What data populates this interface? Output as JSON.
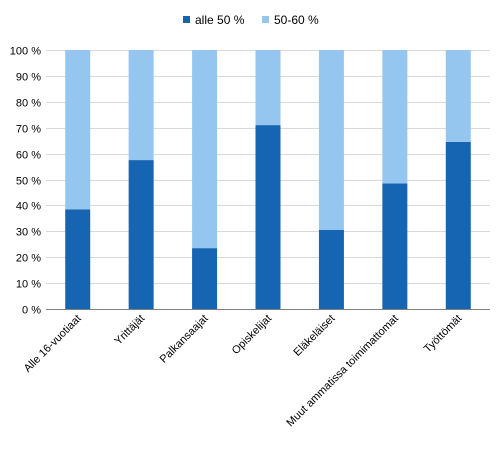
{
  "chart_data": {
    "type": "bar",
    "stacked": true,
    "percent_stacked": true,
    "categories": [
      "Alle 16-vuotiaat",
      "Yrittäjät",
      "Palkansaajat",
      "Opiskelijat",
      "Eläkeläiset",
      "Muut ammatissa toimimattomat",
      "Työttömät"
    ],
    "series": [
      {
        "name": "alle 50  %",
        "color": "#1565b3",
        "values": [
          38.5,
          57.5,
          23.5,
          71,
          30.5,
          48.5,
          64.5
        ]
      },
      {
        "name": "50-60  %",
        "color": "#94c6f0",
        "values": [
          61.5,
          42.5,
          76.5,
          29,
          69.5,
          51.5,
          35.5
        ]
      }
    ],
    "y_ticks": [
      "0 %",
      "10 %",
      "20 %",
      "30 %",
      "40 %",
      "50 %",
      "60 %",
      "70 %",
      "80 %",
      "90 %",
      "100 %"
    ],
    "ylim": [
      0,
      100
    ],
    "grid": true,
    "legend_position": "top"
  }
}
